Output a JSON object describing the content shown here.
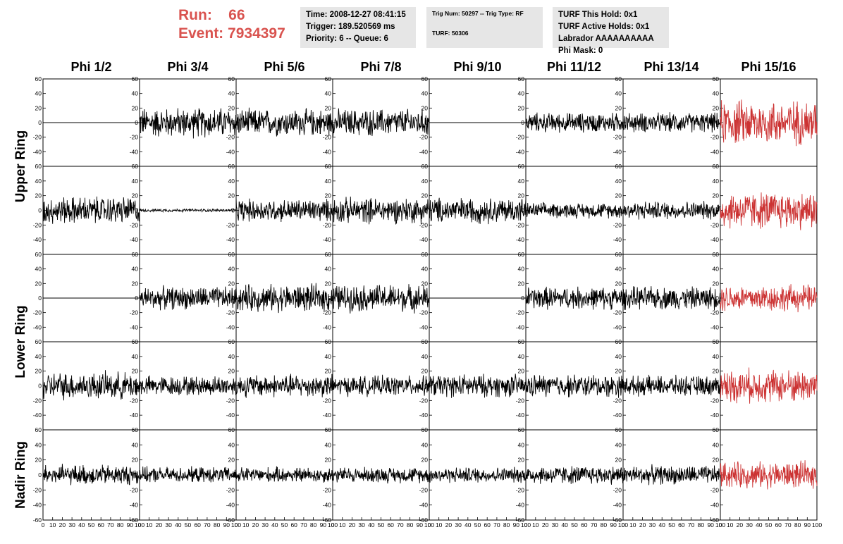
{
  "header": {
    "run_label": "Run:",
    "run_value": "66",
    "event_label": "Event:",
    "event_value": "7934397",
    "time_panel": [
      "Time: 2008-12-27 08:41:15",
      "Trigger: 189.520569 ms",
      "Priority: 6 -- Queue: 6"
    ],
    "trig_panel": [
      "Trig Num: 50297 -- Trig Type: RF",
      "TURF: 50306"
    ],
    "turf_panel": [
      "TURF This Hold: 0x1",
      "TURF Active Holds: 0x1",
      "Labrador AAAAAAAAAA",
      "Phi Mask: 0"
    ]
  },
  "colors": {
    "run_text": "#d9534f",
    "trace_default": "#000000",
    "trace_highlight": "#cc3333",
    "panel_bg": "#e6e6e6"
  },
  "chart_data": {
    "type": "line",
    "columns": [
      "Phi 1/2",
      "Phi 3/4",
      "Phi 5/6",
      "Phi 7/8",
      "Phi 9/10",
      "Phi 11/12",
      "Phi 13/14",
      "Phi 15/16"
    ],
    "rows": [
      "Upper Ring",
      "Lower Ring",
      "Nadir Ring"
    ],
    "ylim": [
      -60,
      60
    ],
    "xlim": [
      0,
      100
    ],
    "ytick_labels": [
      "60",
      "40",
      "20",
      "0",
      "-20",
      "-40"
    ],
    "ytick_labels_bottom": [
      "60",
      "40",
      "20",
      "0",
      "-20",
      "-40",
      "-60"
    ],
    "xtick_labels": [
      "0",
      "10",
      "20",
      "30",
      "40",
      "50",
      "60",
      "70",
      "80",
      "90",
      "100"
    ],
    "highlight_column": 7,
    "trace_amplitude": [
      [
        0,
        20,
        18,
        18,
        0,
        13,
        13,
        30
      ],
      [
        18,
        2,
        15,
        17,
        17,
        10,
        12,
        25
      ],
      [
        0,
        15,
        18,
        18,
        0,
        15,
        15,
        18
      ],
      [
        18,
        13,
        15,
        13,
        15,
        15,
        13,
        22
      ],
      [
        13,
        10,
        10,
        10,
        10,
        12,
        12,
        17
      ]
    ]
  }
}
